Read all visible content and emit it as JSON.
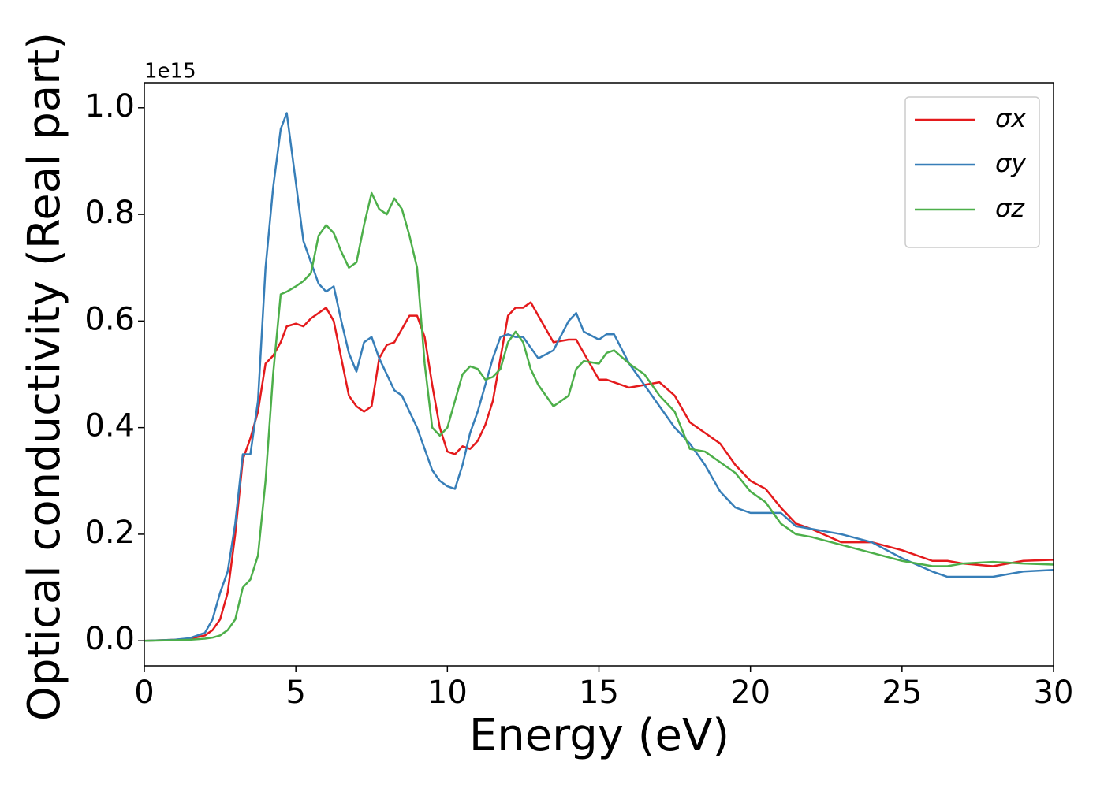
{
  "chart_data": {
    "type": "line",
    "xlabel": "Energy (eV)",
    "ylabel": "Optical conductivity (Real part)",
    "y_offset_label": "1e15",
    "xlim": [
      0,
      30
    ],
    "ylim": [
      -0.047,
      1.047
    ],
    "xticks": [
      0,
      5,
      10,
      15,
      20,
      25,
      30
    ],
    "yticks": [
      {
        "value": 0,
        "label": "0.0"
      },
      0.2,
      0.4,
      0.6,
      0.8,
      {
        "value": 1,
        "label": "1.0"
      }
    ],
    "legend": "upper right",
    "x": [
      0,
      1,
      1.5,
      2,
      2.25,
      2.5,
      2.75,
      3,
      3.25,
      3.5,
      3.75,
      4,
      4.25,
      4.5,
      4.7,
      5,
      5.25,
      5.5,
      5.75,
      6,
      6.25,
      6.5,
      6.75,
      7,
      7.25,
      7.5,
      7.75,
      8,
      8.25,
      8.5,
      8.75,
      9,
      9.25,
      9.5,
      9.75,
      10,
      10.25,
      10.5,
      10.75,
      11,
      11.25,
      11.5,
      11.75,
      12,
      12.25,
      12.5,
      12.75,
      13,
      13.5,
      14,
      14.25,
      14.5,
      15,
      15.25,
      15.5,
      16,
      16.5,
      17,
      17.5,
      18,
      18.5,
      19,
      19.5,
      20,
      20.5,
      21,
      21.5,
      22,
      23,
      24,
      25,
      26,
      26.5,
      27,
      28,
      29,
      30
    ],
    "series": [
      {
        "name": "σx",
        "color": "#e41a1c",
        "values": [
          0,
          0.002,
          0.004,
          0.01,
          0.02,
          0.04,
          0.09,
          0.2,
          0.34,
          0.38,
          0.43,
          0.52,
          0.535,
          0.56,
          0.59,
          0.595,
          0.59,
          0.605,
          0.615,
          0.625,
          0.6,
          0.53,
          0.46,
          0.44,
          0.43,
          0.44,
          0.53,
          0.555,
          0.56,
          0.585,
          0.61,
          0.61,
          0.57,
          0.48,
          0.4,
          0.355,
          0.35,
          0.365,
          0.36,
          0.375,
          0.405,
          0.45,
          0.53,
          0.61,
          0.625,
          0.625,
          0.635,
          0.61,
          0.56,
          0.565,
          0.565,
          0.54,
          0.49,
          0.49,
          0.485,
          0.475,
          0.48,
          0.485,
          0.46,
          0.41,
          0.39,
          0.37,
          0.33,
          0.3,
          0.285,
          0.25,
          0.22,
          0.21,
          0.185,
          0.185,
          0.17,
          0.15,
          0.15,
          0.145,
          0.14,
          0.15,
          0.152
        ]
      },
      {
        "name": "σy",
        "color": "#377eb8",
        "values": [
          0,
          0.002,
          0.005,
          0.015,
          0.04,
          0.09,
          0.13,
          0.22,
          0.35,
          0.35,
          0.45,
          0.7,
          0.85,
          0.96,
          0.99,
          0.86,
          0.75,
          0.71,
          0.67,
          0.655,
          0.665,
          0.6,
          0.54,
          0.505,
          0.56,
          0.57,
          0.53,
          0.5,
          0.47,
          0.46,
          0.43,
          0.4,
          0.36,
          0.32,
          0.3,
          0.29,
          0.285,
          0.33,
          0.39,
          0.43,
          0.48,
          0.53,
          0.57,
          0.575,
          0.57,
          0.57,
          0.55,
          0.53,
          0.545,
          0.6,
          0.615,
          0.58,
          0.565,
          0.575,
          0.575,
          0.52,
          0.48,
          0.44,
          0.4,
          0.37,
          0.33,
          0.28,
          0.25,
          0.24,
          0.24,
          0.24,
          0.215,
          0.21,
          0.2,
          0.185,
          0.155,
          0.13,
          0.12,
          0.12,
          0.12,
          0.13,
          0.133
        ]
      },
      {
        "name": "σz",
        "color": "#4daf4a",
        "values": [
          0,
          0.001,
          0.002,
          0.004,
          0.006,
          0.01,
          0.02,
          0.04,
          0.1,
          0.115,
          0.16,
          0.3,
          0.5,
          0.65,
          0.655,
          0.665,
          0.675,
          0.69,
          0.76,
          0.78,
          0.765,
          0.73,
          0.7,
          0.71,
          0.78,
          0.84,
          0.81,
          0.8,
          0.83,
          0.81,
          0.76,
          0.7,
          0.52,
          0.4,
          0.385,
          0.4,
          0.45,
          0.5,
          0.515,
          0.51,
          0.49,
          0.495,
          0.51,
          0.56,
          0.58,
          0.56,
          0.51,
          0.48,
          0.44,
          0.46,
          0.51,
          0.525,
          0.52,
          0.54,
          0.545,
          0.52,
          0.5,
          0.46,
          0.43,
          0.36,
          0.355,
          0.335,
          0.315,
          0.28,
          0.26,
          0.22,
          0.2,
          0.195,
          0.18,
          0.165,
          0.15,
          0.14,
          0.14,
          0.145,
          0.148,
          0.145,
          0.143
        ]
      }
    ]
  }
}
